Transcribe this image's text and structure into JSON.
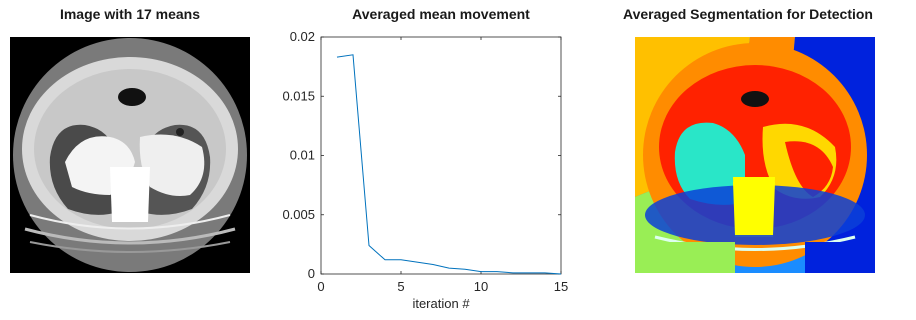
{
  "panels": {
    "left_title": "Image with 17 means",
    "middle_title": "Averaged mean movement",
    "right_title": "Averaged Segmentation for Detection"
  },
  "chart_data": {
    "type": "line",
    "title": "Averaged mean movement",
    "xlabel": "iteration #",
    "ylabel": "",
    "xlim": [
      0,
      15
    ],
    "ylim": [
      0,
      0.02
    ],
    "xticks": [
      0,
      5,
      10,
      15
    ],
    "yticks": [
      0,
      0.005,
      0.01,
      0.015,
      0.02
    ],
    "ytick_labels": [
      "0",
      "0.005",
      "0.01",
      "0.015",
      "0.02"
    ],
    "grid": false,
    "series": [
      {
        "color": "#0072bd",
        "x": [
          1,
          2,
          3,
          4,
          5,
          6,
          7,
          8,
          9,
          10,
          11,
          12,
          13,
          14,
          15
        ],
        "y": [
          0.0183,
          0.0185,
          0.0024,
          0.0012,
          0.0012,
          0.001,
          0.0008,
          0.0005,
          0.0004,
          0.0002,
          0.0002,
          0.0001,
          0.0001,
          0.0001,
          0.0
        ]
      }
    ]
  }
}
